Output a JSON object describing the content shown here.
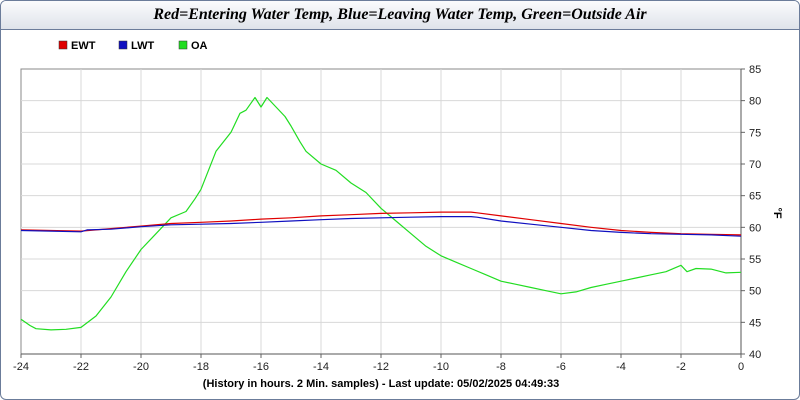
{
  "chart_data": {
    "type": "line",
    "title": "Red=Entering Water Temp, Blue=Leaving Water Temp, Green=Outside Air",
    "xlabel": "(History in hours. 2 Min. samples) - Last update: 05/02/2025 04:49:33",
    "ylabel": "°F",
    "xlim": [
      -24,
      0
    ],
    "ylim": [
      40,
      85
    ],
    "xticks": [
      -24,
      -22,
      -20,
      -18,
      -16,
      -14,
      -12,
      -10,
      -8,
      -6,
      -4,
      -2,
      0
    ],
    "yticks": [
      40,
      45,
      50,
      55,
      60,
      65,
      70,
      75,
      80,
      85
    ],
    "grid": true,
    "legend_position": "top-left",
    "series": [
      {
        "name": "EWT",
        "color": "#e00000",
        "x": [
          -24,
          -23,
          -22,
          -21,
          -20,
          -19,
          -18,
          -17,
          -16,
          -15,
          -14,
          -13,
          -12,
          -11,
          -10,
          -9,
          -8.8,
          -8,
          -7,
          -6,
          -5,
          -4,
          -3,
          -2,
          -1,
          0
        ],
        "values": [
          59.6,
          59.5,
          59.4,
          59.8,
          60.2,
          60.6,
          60.8,
          61.0,
          61.3,
          61.5,
          61.8,
          62.0,
          62.2,
          62.3,
          62.4,
          62.4,
          62.3,
          61.8,
          61.2,
          60.6,
          60.0,
          59.5,
          59.2,
          59.0,
          58.9,
          58.8
        ]
      },
      {
        "name": "LWT",
        "color": "#1010c0",
        "x": [
          -24,
          -23,
          -22,
          -21.8,
          -21,
          -20,
          -19,
          -18,
          -17,
          -16,
          -15,
          -14,
          -13,
          -12,
          -11,
          -10,
          -9,
          -8.8,
          -8,
          -7,
          -6,
          -5,
          -4,
          -3,
          -2,
          -1,
          0
        ],
        "values": [
          59.5,
          59.4,
          59.3,
          59.6,
          59.7,
          60.1,
          60.4,
          60.5,
          60.6,
          60.8,
          61.0,
          61.2,
          61.4,
          61.5,
          61.6,
          61.7,
          61.7,
          61.6,
          61.0,
          60.5,
          60.0,
          59.5,
          59.2,
          59.0,
          58.9,
          58.8,
          58.6
        ]
      },
      {
        "name": "OA",
        "color": "#22dd22",
        "x": [
          -24,
          -23.7,
          -23.5,
          -23,
          -22.5,
          -22,
          -21.5,
          -21,
          -20.5,
          -20,
          -19.5,
          -19,
          -18.5,
          -18.2,
          -18,
          -17.5,
          -17,
          -16.7,
          -16.5,
          -16.2,
          -16,
          -15.8,
          -15.5,
          -15.2,
          -15,
          -14.7,
          -14.5,
          -14,
          -13.5,
          -13,
          -12.5,
          -12,
          -11.5,
          -11,
          -10.5,
          -10,
          -9.5,
          -9,
          -8.5,
          -8,
          -7.5,
          -7,
          -6.5,
          -6,
          -5.5,
          -5,
          -4.5,
          -4,
          -3.5,
          -3,
          -2.5,
          -2,
          -1.8,
          -1.5,
          -1,
          -0.5,
          0
        ],
        "values": [
          45.5,
          44.5,
          44.0,
          43.8,
          43.9,
          44.2,
          46.0,
          49.0,
          53.0,
          56.5,
          59.0,
          61.5,
          62.5,
          64.5,
          66.0,
          72.0,
          75.0,
          78.0,
          78.5,
          80.5,
          79.0,
          80.5,
          79.0,
          77.5,
          76.0,
          73.5,
          72.0,
          70.0,
          69.0,
          67.0,
          65.5,
          63.0,
          61.0,
          59.0,
          57.0,
          55.5,
          54.5,
          53.5,
          52.5,
          51.5,
          51.0,
          50.5,
          50.0,
          49.5,
          49.8,
          50.5,
          51.0,
          51.5,
          52.0,
          52.5,
          53.0,
          54.0,
          53.0,
          53.5,
          53.4,
          52.8,
          52.9
        ]
      }
    ]
  }
}
